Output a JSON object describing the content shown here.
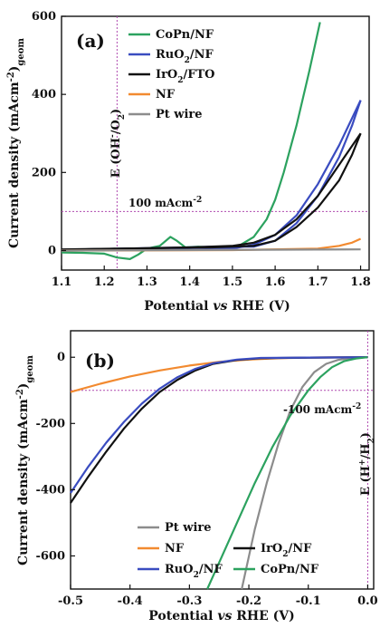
{
  "chart_data": [
    {
      "type": "line",
      "panel_label": "(a)",
      "xlabel": "Potential vs RHE (V)",
      "ylabel": "Current density (mAcm-2)geom",
      "xlim": [
        1.1,
        1.82
      ],
      "ylim": [
        -50,
        600
      ],
      "x_ticks": [
        "1.1",
        "1.2",
        "1.3",
        "1.4",
        "1.5",
        "1.6",
        "1.7",
        "1.8"
      ],
      "y_ticks": [
        "0",
        "200",
        "400",
        "600"
      ],
      "vline_x": 1.23,
      "vline_label": "E (OH-/O2)",
      "hline_y": 100,
      "hline_label": "100 mAcm-2",
      "legend_position": "top-left",
      "series": [
        {
          "name": "CoPn/NF",
          "color": "#2ca25f",
          "points": [
            [
              1.1,
              -5
            ],
            [
              1.15,
              -6
            ],
            [
              1.2,
              -8
            ],
            [
              1.23,
              -18
            ],
            [
              1.26,
              -22
            ],
            [
              1.28,
              -10
            ],
            [
              1.3,
              5
            ],
            [
              1.33,
              12
            ],
            [
              1.355,
              35
            ],
            [
              1.37,
              25
            ],
            [
              1.39,
              8
            ],
            [
              1.42,
              10
            ],
            [
              1.45,
              8
            ],
            [
              1.5,
              8
            ],
            [
              1.52,
              15
            ],
            [
              1.55,
              35
            ],
            [
              1.58,
              80
            ],
            [
              1.6,
              130
            ],
            [
              1.62,
              200
            ],
            [
              1.65,
              320
            ],
            [
              1.68,
              460
            ],
            [
              1.705,
              585
            ]
          ]
        },
        {
          "name": "RuO2/NF",
          "color": "#3a4cc0",
          "points": [
            [
              1.1,
              0
            ],
            [
              1.4,
              2
            ],
            [
              1.5,
              5
            ],
            [
              1.55,
              15
            ],
            [
              1.6,
              40
            ],
            [
              1.65,
              90
            ],
            [
              1.7,
              170
            ],
            [
              1.75,
              270
            ],
            [
              1.8,
              385
            ]
          ]
        },
        {
          "name": "RuO2/NF",
          "color": "#3a4cc0",
          "points": [
            [
              1.8,
              385
            ],
            [
              1.78,
              320
            ],
            [
              1.75,
              240
            ],
            [
              1.7,
              140
            ],
            [
              1.65,
              70
            ],
            [
              1.6,
              25
            ],
            [
              1.55,
              10
            ],
            [
              1.45,
              10
            ],
            [
              1.4,
              8
            ],
            [
              1.1,
              2
            ]
          ]
        },
        {
          "name": "IrO2/FTO",
          "color": "#111111",
          "points": [
            [
              1.1,
              2
            ],
            [
              1.4,
              8
            ],
            [
              1.5,
              12
            ],
            [
              1.55,
              20
            ],
            [
              1.6,
              40
            ],
            [
              1.65,
              80
            ],
            [
              1.7,
              140
            ],
            [
              1.75,
              220
            ],
            [
              1.8,
              300
            ]
          ]
        },
        {
          "name": "IrO2/FTO",
          "color": "#111111",
          "points": [
            [
              1.8,
              300
            ],
            [
              1.78,
              245
            ],
            [
              1.75,
              180
            ],
            [
              1.7,
              110
            ],
            [
              1.65,
              60
            ],
            [
              1.6,
              25
            ],
            [
              1.55,
              12
            ],
            [
              1.45,
              8
            ],
            [
              1.1,
              3
            ]
          ]
        },
        {
          "name": "NF",
          "color": "#f28a30",
          "points": [
            [
              1.1,
              0
            ],
            [
              1.5,
              1
            ],
            [
              1.7,
              5
            ],
            [
              1.75,
              12
            ],
            [
              1.78,
              20
            ],
            [
              1.8,
              30
            ]
          ]
        },
        {
          "name": "Pt wire",
          "color": "#8c8c8c",
          "points": [
            [
              1.1,
              0
            ],
            [
              1.8,
              3
            ]
          ]
        }
      ]
    },
    {
      "type": "line",
      "panel_label": "(b)",
      "xlabel": "Potential vs RHE (V)",
      "ylabel": "Current density (mAcm-2)geom",
      "xlim": [
        -0.5,
        0.01
      ],
      "ylim": [
        -700,
        80
      ],
      "x_ticks": [
        "-0.5",
        "-0.4",
        "-0.3",
        "-0.2",
        "-0.1",
        "0.0"
      ],
      "y_ticks": [
        "0",
        "-200",
        "-400",
        "-600"
      ],
      "vline_x": 0.0,
      "vline_label": "E (H+/H2)",
      "hline_y": -100,
      "hline_label": "-100 mAcm-2",
      "legend_position": "bottom",
      "series": [
        {
          "name": "Pt wire",
          "color": "#8c8c8c",
          "points": [
            [
              -0.212,
              -700
            ],
            [
              -0.19,
              -520
            ],
            [
              -0.17,
              -380
            ],
            [
              -0.15,
              -260
            ],
            [
              -0.13,
              -160
            ],
            [
              -0.11,
              -90
            ],
            [
              -0.09,
              -45
            ],
            [
              -0.07,
              -20
            ],
            [
              -0.05,
              -8
            ],
            [
              -0.03,
              -3
            ],
            [
              0.0,
              0
            ]
          ]
        },
        {
          "name": "NF",
          "color": "#f28a30",
          "points": [
            [
              -0.5,
              -105
            ],
            [
              -0.45,
              -80
            ],
            [
              -0.4,
              -58
            ],
            [
              -0.35,
              -40
            ],
            [
              -0.3,
              -25
            ],
            [
              -0.25,
              -14
            ],
            [
              -0.2,
              -7
            ],
            [
              -0.15,
              -3
            ],
            [
              -0.1,
              -1
            ],
            [
              0.0,
              0
            ]
          ]
        },
        {
          "name": "IrO2/NF",
          "color": "#111111",
          "points": [
            [
              -0.5,
              -440
            ],
            [
              -0.47,
              -360
            ],
            [
              -0.44,
              -285
            ],
            [
              -0.41,
              -215
            ],
            [
              -0.38,
              -155
            ],
            [
              -0.35,
              -105
            ],
            [
              -0.32,
              -68
            ],
            [
              -0.29,
              -40
            ],
            [
              -0.26,
              -20
            ],
            [
              -0.22,
              -8
            ],
            [
              -0.18,
              -3
            ],
            [
              -0.1,
              -1
            ],
            [
              0.0,
              0
            ]
          ]
        },
        {
          "name": "RuO2/NF",
          "color": "#3a4cc0",
          "points": [
            [
              -0.5,
              -410
            ],
            [
              -0.47,
              -330
            ],
            [
              -0.44,
              -258
            ],
            [
              -0.41,
              -195
            ],
            [
              -0.38,
              -140
            ],
            [
              -0.35,
              -95
            ],
            [
              -0.32,
              -60
            ],
            [
              -0.29,
              -35
            ],
            [
              -0.26,
              -18
            ],
            [
              -0.22,
              -7
            ],
            [
              -0.18,
              -2
            ],
            [
              -0.1,
              -1
            ],
            [
              0.0,
              0
            ]
          ]
        },
        {
          "name": "CoPn/NF",
          "color": "#2ca25f",
          "points": [
            [
              -0.27,
              -700
            ],
            [
              -0.25,
              -620
            ],
            [
              -0.22,
              -500
            ],
            [
              -0.19,
              -380
            ],
            [
              -0.16,
              -270
            ],
            [
              -0.13,
              -175
            ],
            [
              -0.1,
              -100
            ],
            [
              -0.08,
              -60
            ],
            [
              -0.06,
              -30
            ],
            [
              -0.04,
              -12
            ],
            [
              -0.02,
              -4
            ],
            [
              0.0,
              0
            ]
          ]
        }
      ]
    }
  ]
}
